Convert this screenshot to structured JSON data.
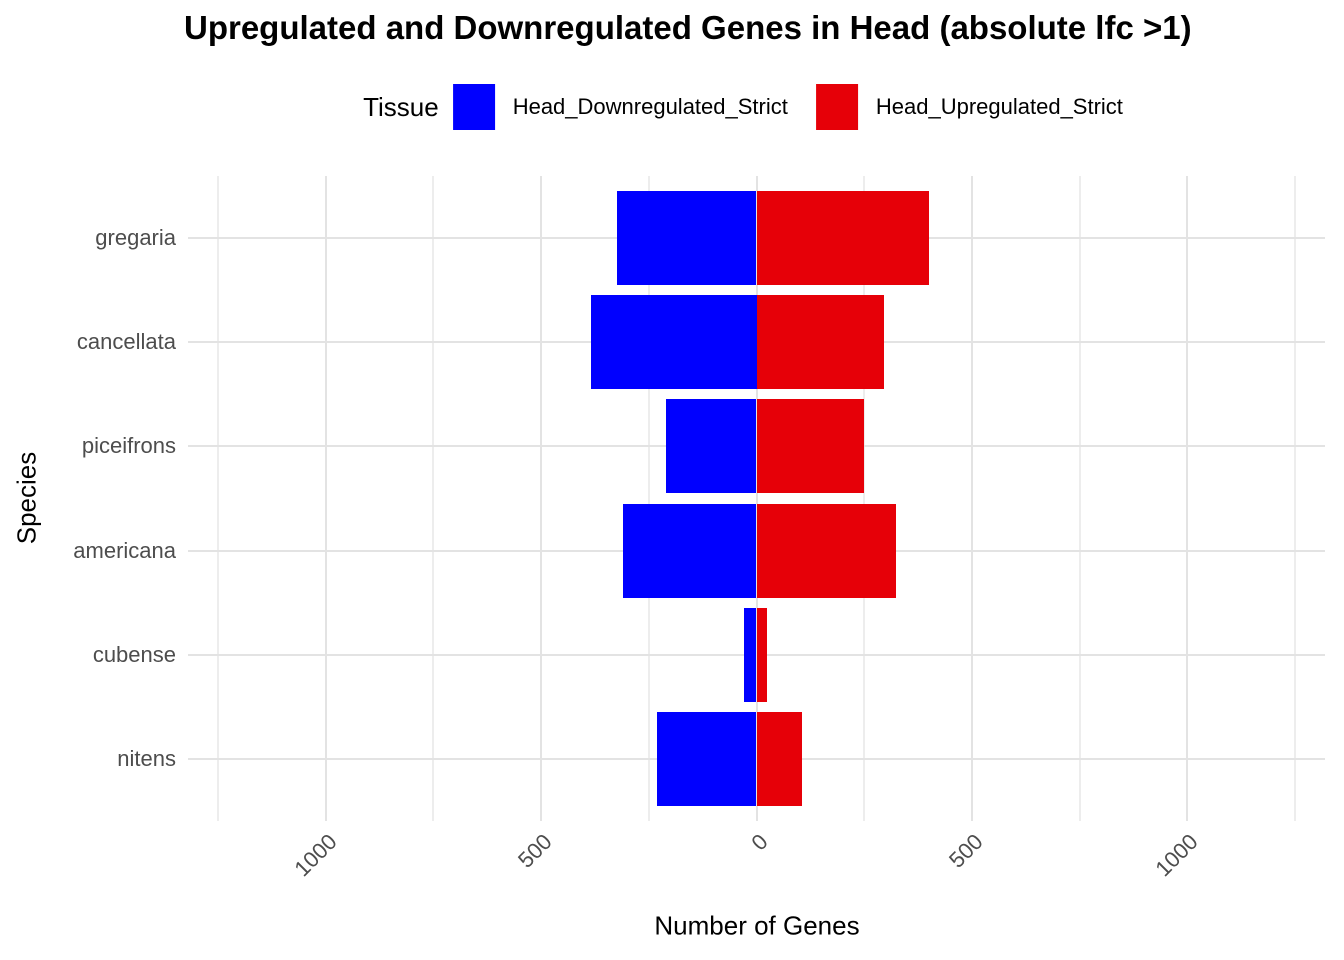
{
  "figure": {
    "title": "Upregulated and Downregulated Genes in Head (absolute lfc >1)",
    "background": "#FFFFFF"
  },
  "legend": {
    "title": "Tissue",
    "position": "top",
    "entries": [
      {
        "label": "Head_Downregulated_Strict",
        "color": "#0000FF"
      },
      {
        "label": "Head_Upregulated_Strict",
        "color": "#E60008"
      }
    ]
  },
  "chart_data": {
    "type": "bar",
    "variant": "diverging-horizontal",
    "title": "Upregulated and Downregulated Genes in Head (absolute lfc >1)",
    "xlabel": "Number of Genes",
    "ylabel": "Species",
    "categories": [
      "gregaria",
      "cancellata",
      "piceifrons",
      "americana",
      "cubense",
      "nitens"
    ],
    "series": [
      {
        "name": "Head_Downregulated_Strict",
        "color": "#0000FF",
        "side": "negative",
        "values": [
          325,
          385,
          210,
          310,
          30,
          230
        ]
      },
      {
        "name": "Head_Upregulated_Strict",
        "color": "#E60008",
        "side": "positive",
        "values": [
          400,
          295,
          250,
          325,
          25,
          105
        ]
      }
    ],
    "x_ticks": [
      {
        "value": -1000,
        "label": "1000"
      },
      {
        "value": -500,
        "label": "500"
      },
      {
        "value": 0,
        "label": "0"
      },
      {
        "value": 500,
        "label": "500"
      },
      {
        "value": 1000,
        "label": "1000"
      }
    ],
    "x_minor_ticks": [
      -1250,
      -750,
      -250,
      250,
      750,
      1250
    ],
    "xlim": [
      -1320,
      1320
    ],
    "grid": {
      "major_color": "#E3E3E3",
      "minor_color": "#EDEDED",
      "show": true
    },
    "axis_text_color": "#4D4D4D",
    "bar_relative_height": 0.9
  }
}
